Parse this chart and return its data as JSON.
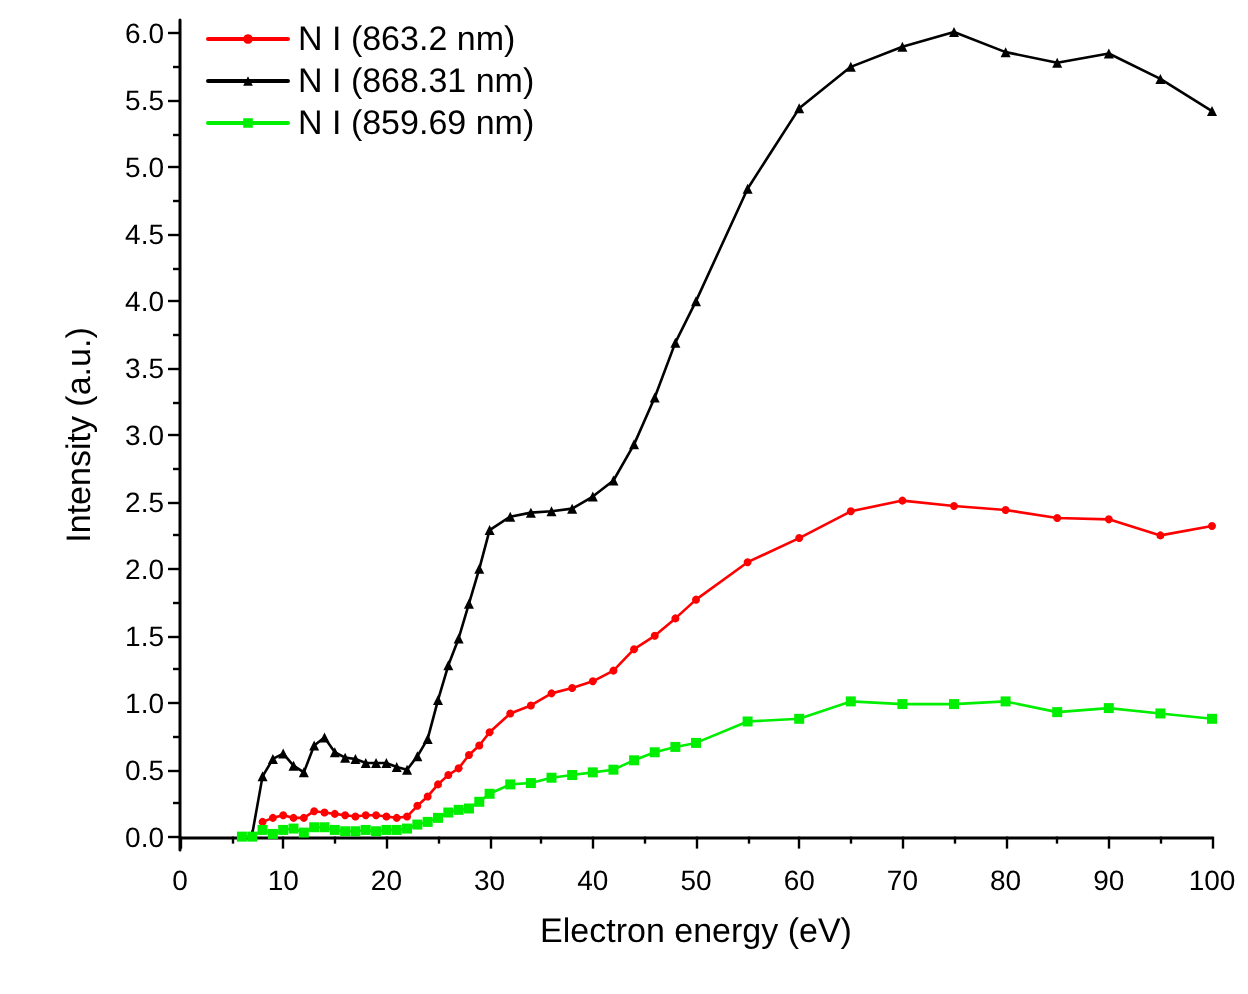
{
  "chart_data": {
    "type": "line",
    "xlabel": "Electron energy (eV)",
    "ylabel": "Intensity (a.u.)",
    "xlim": [
      0,
      100
    ],
    "xticks": [
      0,
      10,
      20,
      30,
      40,
      50,
      60,
      70,
      80,
      90,
      100
    ],
    "ylim": [
      -0.1,
      6.1
    ],
    "yticks": [
      {
        "value": 0,
        "label": "0.0"
      },
      {
        "value": 0.5,
        "label": "0.5"
      },
      {
        "value": 1,
        "label": "1.0"
      },
      {
        "value": 1.5,
        "label": "1.5"
      },
      {
        "value": 2,
        "label": "2.0"
      },
      {
        "value": 2.5,
        "label": "2.5"
      },
      {
        "value": 3,
        "label": "3.0"
      },
      {
        "value": 3.5,
        "label": "3.5"
      },
      {
        "value": 4,
        "label": "4.0"
      },
      {
        "value": 4.5,
        "label": "4.5"
      },
      {
        "value": 5,
        "label": "5.0"
      },
      {
        "value": 5.5,
        "label": "5.5"
      },
      {
        "value": 6,
        "label": "6.0"
      }
    ],
    "grid": false,
    "legend": "top left",
    "line_style": "solid",
    "series": [
      {
        "name": "N I (863.2 nm)",
        "color": "#ff0000",
        "marker": "circle",
        "x": [
          8,
          9,
          10,
          11,
          12,
          13,
          14,
          15,
          16,
          17,
          18,
          19,
          20,
          21,
          22,
          23,
          24,
          25,
          26,
          27,
          28,
          29,
          30,
          32,
          34,
          36,
          38,
          40,
          42,
          44,
          46,
          48,
          50,
          55,
          60,
          65,
          70,
          75,
          80,
          85,
          90,
          95,
          100
        ],
        "values": [
          0.11,
          0.14,
          0.16,
          0.14,
          0.14,
          0.19,
          0.18,
          0.17,
          0.16,
          0.15,
          0.16,
          0.16,
          0.15,
          0.14,
          0.15,
          0.23,
          0.3,
          0.39,
          0.46,
          0.51,
          0.61,
          0.68,
          0.78,
          0.92,
          0.98,
          1.07,
          1.11,
          1.16,
          1.24,
          1.4,
          1.5,
          1.63,
          1.77,
          2.05,
          2.23,
          2.43,
          2.51,
          2.47,
          2.44,
          2.38,
          2.37,
          2.25,
          2.32
        ]
      },
      {
        "name": "N I (868.31 nm)",
        "color": "#000000",
        "marker": "triangle",
        "x": [
          7,
          8,
          9,
          10,
          11,
          12,
          13,
          14,
          15,
          16,
          17,
          18,
          19,
          20,
          21,
          22,
          23,
          24,
          25,
          26,
          27,
          28,
          29,
          30,
          32,
          34,
          36,
          38,
          40,
          42,
          44,
          46,
          48,
          50,
          55,
          60,
          65,
          70,
          75,
          80,
          85,
          90,
          95,
          100
        ],
        "values": [
          0.02,
          0.45,
          0.58,
          0.62,
          0.53,
          0.48,
          0.68,
          0.74,
          0.63,
          0.59,
          0.58,
          0.55,
          0.55,
          0.55,
          0.52,
          0.5,
          0.6,
          0.73,
          1.02,
          1.28,
          1.48,
          1.74,
          2.0,
          2.29,
          2.39,
          2.42,
          2.43,
          2.45,
          2.54,
          2.66,
          2.93,
          3.28,
          3.69,
          4.0,
          4.84,
          5.44,
          5.75,
          5.9,
          6.01,
          5.86,
          5.78,
          5.85,
          5.66,
          5.42
        ]
      },
      {
        "name": "N I (859.69 nm)",
        "color": "#00ee00",
        "marker": "square",
        "x": [
          6,
          7,
          8,
          9,
          10,
          11,
          12,
          13,
          14,
          15,
          16,
          17,
          18,
          19,
          20,
          21,
          22,
          23,
          24,
          25,
          26,
          27,
          28,
          29,
          30,
          32,
          34,
          36,
          38,
          40,
          42,
          44,
          46,
          48,
          50,
          55,
          60,
          65,
          70,
          75,
          80,
          85,
          90,
          95,
          100
        ],
        "values": [
          0,
          0,
          0.05,
          0.02,
          0.05,
          0.06,
          0.03,
          0.07,
          0.07,
          0.05,
          0.04,
          0.04,
          0.05,
          0.04,
          0.05,
          0.05,
          0.06,
          0.09,
          0.11,
          0.14,
          0.18,
          0.2,
          0.21,
          0.26,
          0.32,
          0.39,
          0.4,
          0.44,
          0.46,
          0.48,
          0.5,
          0.57,
          0.63,
          0.67,
          0.7,
          0.86,
          0.88,
          1.01,
          0.99,
          0.99,
          1.01,
          0.93,
          0.96,
          0.92,
          0.88
        ]
      }
    ]
  }
}
